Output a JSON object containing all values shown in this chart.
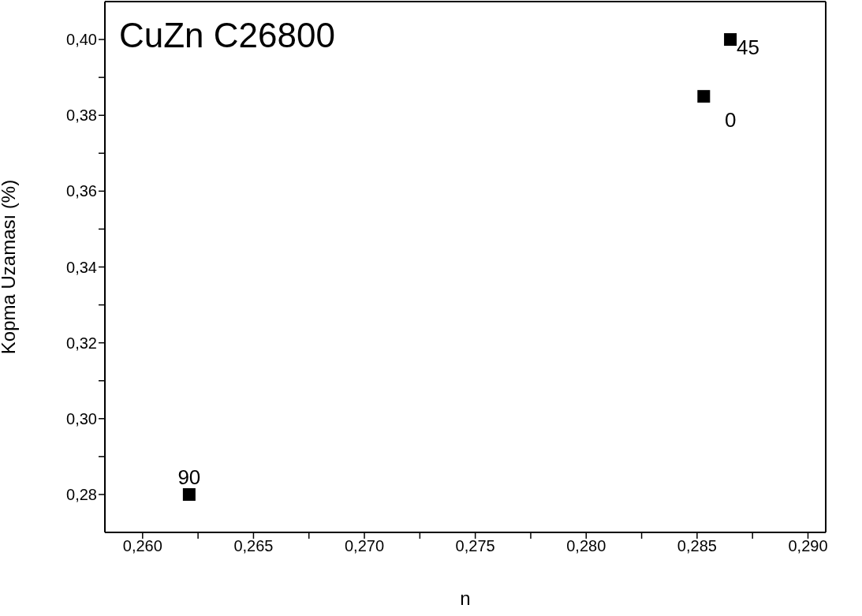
{
  "chart_data": {
    "type": "scatter",
    "title": "CuZn C26800",
    "xlabel": "n",
    "ylabel": "Kopma Uzaması (%)",
    "x": [
      0.2621,
      0.2853,
      0.2865
    ],
    "values": [
      0.28,
      0.385,
      0.4
    ],
    "color": "#000000",
    "marker": "square",
    "xlim": [
      0.2583,
      0.2908
    ],
    "xticks": [
      {
        "value": 0.26,
        "label": "0,260"
      },
      {
        "value": 0.2625,
        "label": null
      },
      {
        "value": 0.265,
        "label": "0,265"
      },
      {
        "value": 0.2675,
        "label": null
      },
      {
        "value": 0.27,
        "label": "0,270"
      },
      {
        "value": 0.2725,
        "label": null
      },
      {
        "value": 0.275,
        "label": "0,275"
      },
      {
        "value": 0.2775,
        "label": null
      },
      {
        "value": 0.28,
        "label": "0,280"
      },
      {
        "value": 0.2825,
        "label": null
      },
      {
        "value": 0.285,
        "label": "0,285"
      },
      {
        "value": 0.2875,
        "label": null
      },
      {
        "value": 0.29,
        "label": "0,290"
      }
    ],
    "ylim": [
      0.27,
      0.41
    ],
    "yticks": [
      {
        "value": 0.28,
        "label": "0,28"
      },
      {
        "value": 0.29,
        "label": null
      },
      {
        "value": 0.3,
        "label": "0,30"
      },
      {
        "value": 0.31,
        "label": null
      },
      {
        "value": 0.32,
        "label": "0,32"
      },
      {
        "value": 0.33,
        "label": null
      },
      {
        "value": 0.34,
        "label": "0,34"
      },
      {
        "value": 0.35,
        "label": null
      },
      {
        "value": 0.36,
        "label": "0,36"
      },
      {
        "value": 0.37,
        "label": null
      },
      {
        "value": 0.38,
        "label": "0,38"
      },
      {
        "value": 0.39,
        "label": null
      },
      {
        "value": 0.4,
        "label": "0,40"
      }
    ],
    "annotations": [
      {
        "text": "90",
        "x": 0.2621,
        "y": 0.28
      },
      {
        "text": "0",
        "x": 0.2853,
        "y": 0.385
      },
      {
        "text": "45",
        "x": 0.2865,
        "y": 0.4
      }
    ],
    "grid": false,
    "legend": false
  }
}
